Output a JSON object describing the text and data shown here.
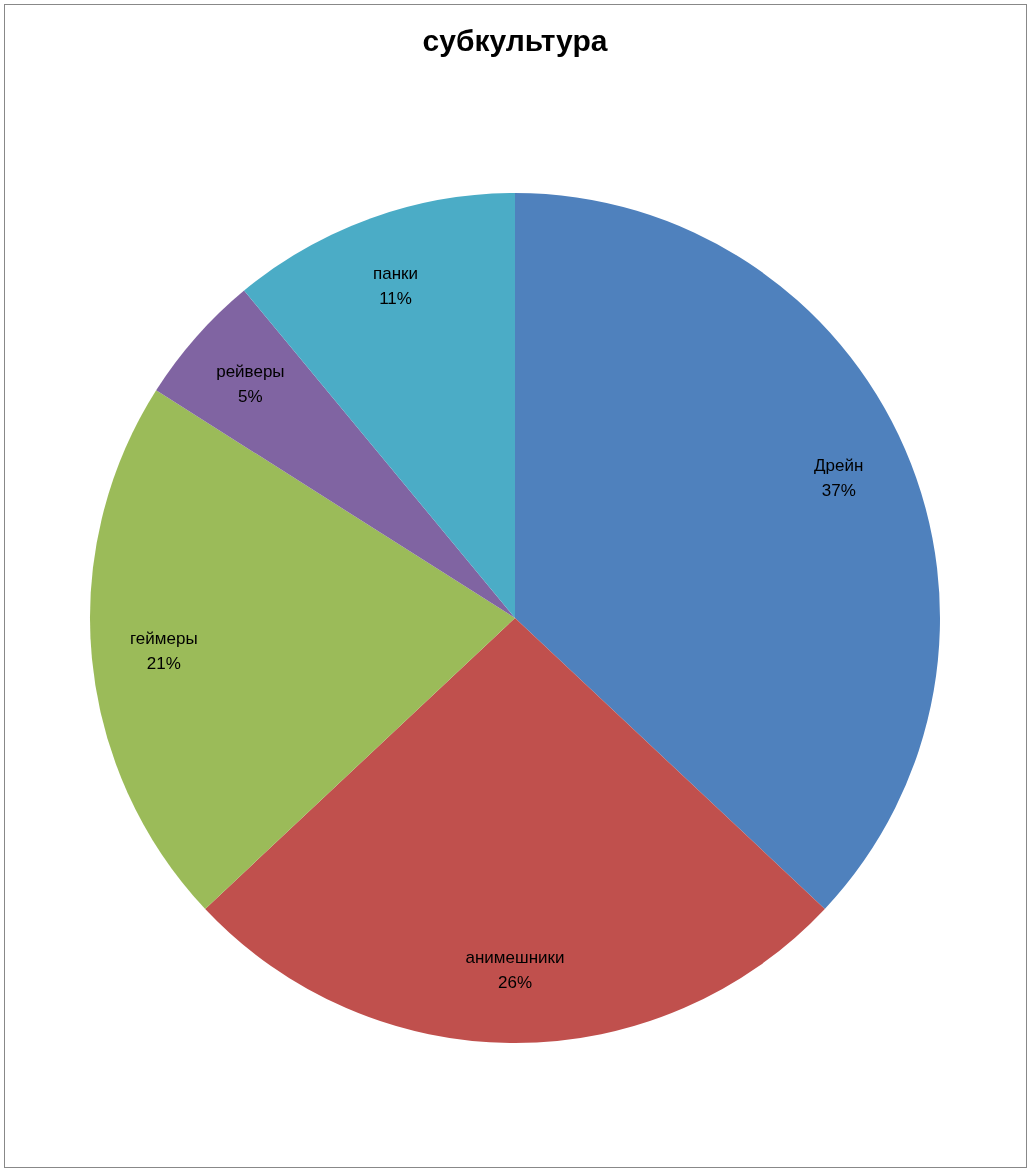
{
  "chart_data": {
    "type": "pie",
    "title": "субкультура",
    "categories": [
      "Дрейн",
      "анимешники",
      "геймеры",
      "рейверы",
      "панки"
    ],
    "values": [
      37,
      26,
      21,
      5,
      11
    ],
    "value_labels": [
      "37%",
      "26%",
      "21%",
      "5%",
      "11%"
    ],
    "colors": [
      "#4f81bd",
      "#c0504d",
      "#9bbb59",
      "#8064a2",
      "#4bacc6"
    ],
    "legend": false
  }
}
